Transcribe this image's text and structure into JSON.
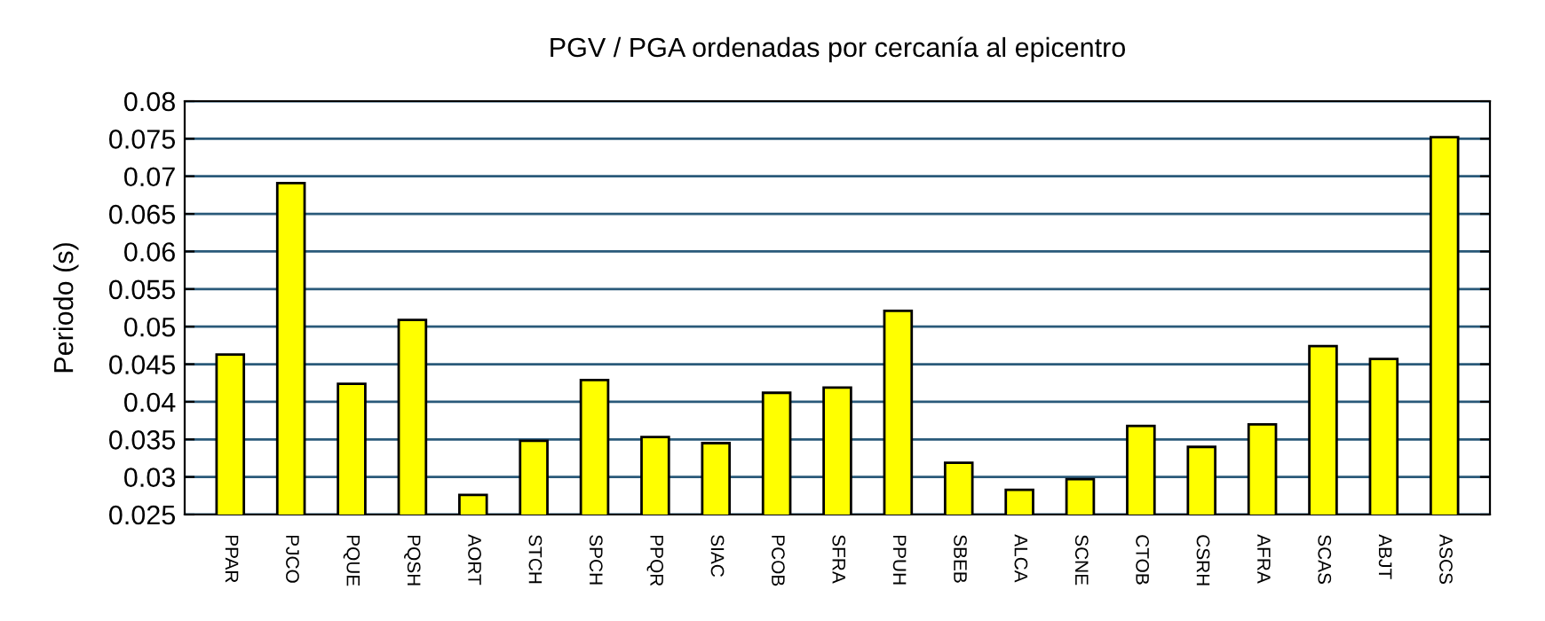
{
  "chart_data": {
    "type": "bar",
    "title": "PGV / PGA ordenadas por cercanía al epicentro",
    "ylabel": "Periodo (s)",
    "categories": [
      "PPAR",
      "PJCO",
      "PQUE",
      "PQSH",
      "AORT",
      "STCH",
      "SPCH",
      "PPQR",
      "SIAC",
      "PCOB",
      "SFRA",
      "PPUH",
      "SBEB",
      "ALCA",
      "SCNE",
      "CTOB",
      "CSRH",
      "AFRA",
      "SCAS",
      "ABJT",
      "ASCS"
    ],
    "values": [
      0.0463,
      0.0691,
      0.0424,
      0.0509,
      0.0276,
      0.0348,
      0.0429,
      0.0353,
      0.0345,
      0.0412,
      0.0419,
      0.0521,
      0.0319,
      0.0283,
      0.0297,
      0.0368,
      0.034,
      0.037,
      0.0474,
      0.0457,
      0.0752
    ],
    "color": "#ffff00",
    "ylim": [
      0.025,
      0.08
    ],
    "yticks": [
      0.025,
      0.03,
      0.035,
      0.04,
      0.045,
      0.05,
      0.055,
      0.06,
      0.065,
      0.07,
      0.075,
      0.08
    ],
    "grid": "y"
  }
}
